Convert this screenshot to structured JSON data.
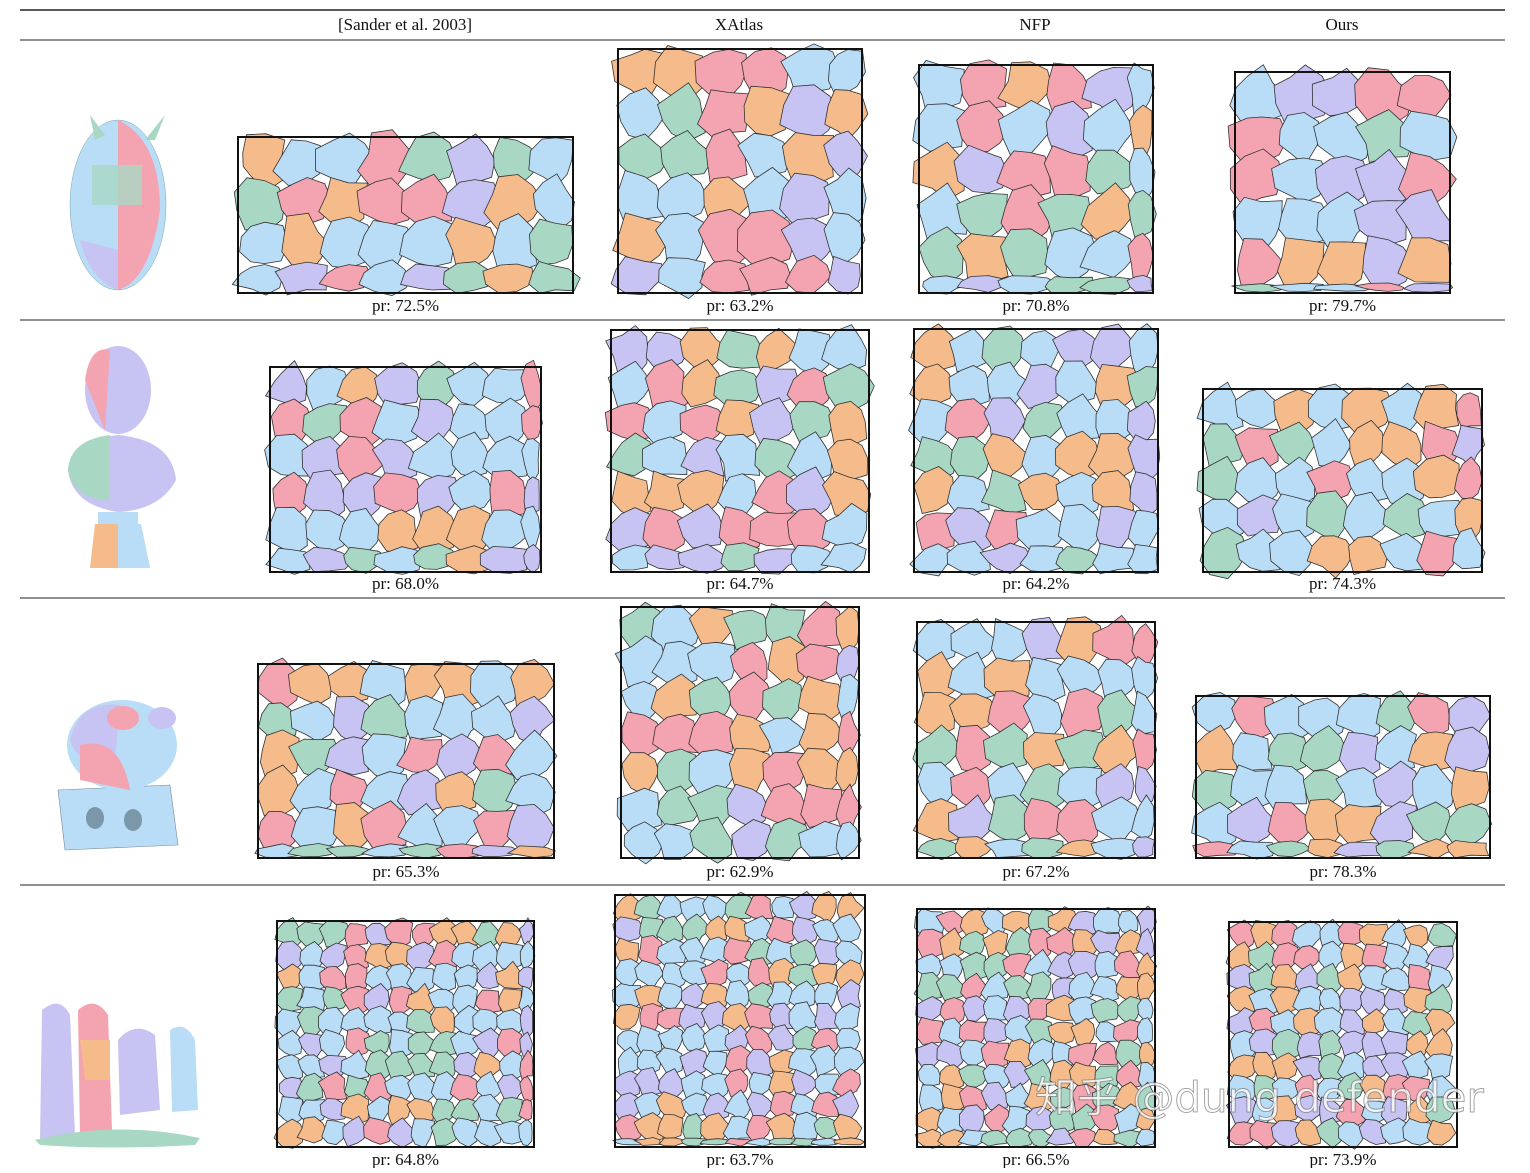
{
  "table": {
    "headers": [
      "[Sander et al. 2003]",
      "XAtlas",
      "NFP",
      "Ours"
    ],
    "rows": [
      [
        "pr: 72.5%",
        "pr: 63.2%",
        "pr: 70.8%",
        "pr: 79.7%"
      ],
      [
        "pr: 68.0%",
        "pr: 64.7%",
        "pr: 64.2%",
        "pr: 74.3%"
      ],
      [
        "pr: 65.3%",
        "pr: 62.9%",
        "pr: 67.2%",
        "pr: 78.3%"
      ],
      [
        "pr: 64.8%",
        "pr: 63.7%",
        "pr: 66.5%",
        "pr: 73.9%"
      ]
    ]
  },
  "watermark": "知乎 @dung defender"
}
